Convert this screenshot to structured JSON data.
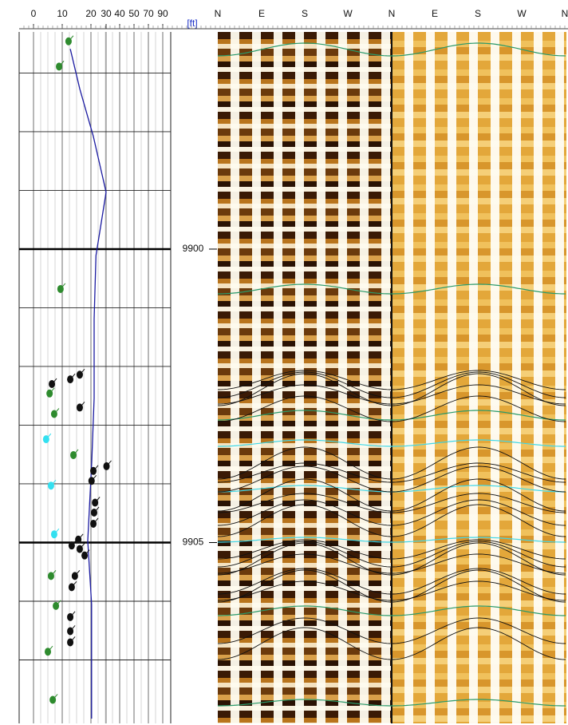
{
  "chart_data": {
    "type": "scatter",
    "depth_unit": "[ft]",
    "xlim": [
      0,
      90
    ],
    "xticks": [
      0,
      10,
      20,
      30,
      40,
      50,
      70,
      90
    ],
    "ylim": [
      9896.3,
      9908
    ],
    "yticks": [
      9900,
      9905
    ],
    "grid_yticks": [
      9897,
      9898,
      9899,
      9900,
      9901,
      9902,
      9903,
      9904,
      9905,
      9906,
      9907
    ],
    "compass_labels": [
      "N",
      "E",
      "S",
      "W",
      "N",
      "E",
      "S",
      "W",
      "N"
    ],
    "series": [
      {
        "color": "#2e8b2e",
        "x": [
          12.2,
          8.9,
          9.4,
          5.6,
          7.2,
          13.9,
          6.1,
          7.8,
          5.0,
          6.7
        ],
        "y": [
          9896.46,
          9896.89,
          9900.68,
          9902.46,
          9902.81,
          9903.51,
          9905.57,
          9906.08,
          9906.86,
          9907.68
        ]
      },
      {
        "color": "#111111",
        "x": [
          16.1,
          12.8,
          6.4,
          16.1,
          30.3,
          21.6,
          20.4,
          22.7,
          22.1,
          21.6,
          15.6,
          13.3,
          16.1,
          17.8,
          14.4,
          13.3,
          12.8,
          12.8,
          12.8
        ],
        "y": [
          9902.14,
          9902.22,
          9902.3,
          9902.7,
          9903.7,
          9903.78,
          9903.95,
          9904.32,
          9904.49,
          9904.68,
          9904.95,
          9905.05,
          9905.11,
          9905.22,
          9905.57,
          9905.76,
          9906.27,
          9906.51,
          9906.7
        ]
      },
      {
        "color": "#33e0f0",
        "x": [
          4.4,
          6.1,
          7.2
        ],
        "y": [
          9903.24,
          9904.03,
          9904.86
        ]
      }
    ],
    "curve": {
      "type": "line",
      "color": "#1a1aa0",
      "x": [
        12.8,
        16.1,
        21.6,
        30,
        23.3,
        22.1,
        22.1,
        20.5,
        18.9,
        20.4,
        20.4
      ],
      "y": [
        9896.59,
        9897.27,
        9898.08,
        9899.03,
        9900.11,
        9901.19,
        9902.54,
        9903.62,
        9904.97,
        9906.05,
        9908
      ]
    }
  }
}
